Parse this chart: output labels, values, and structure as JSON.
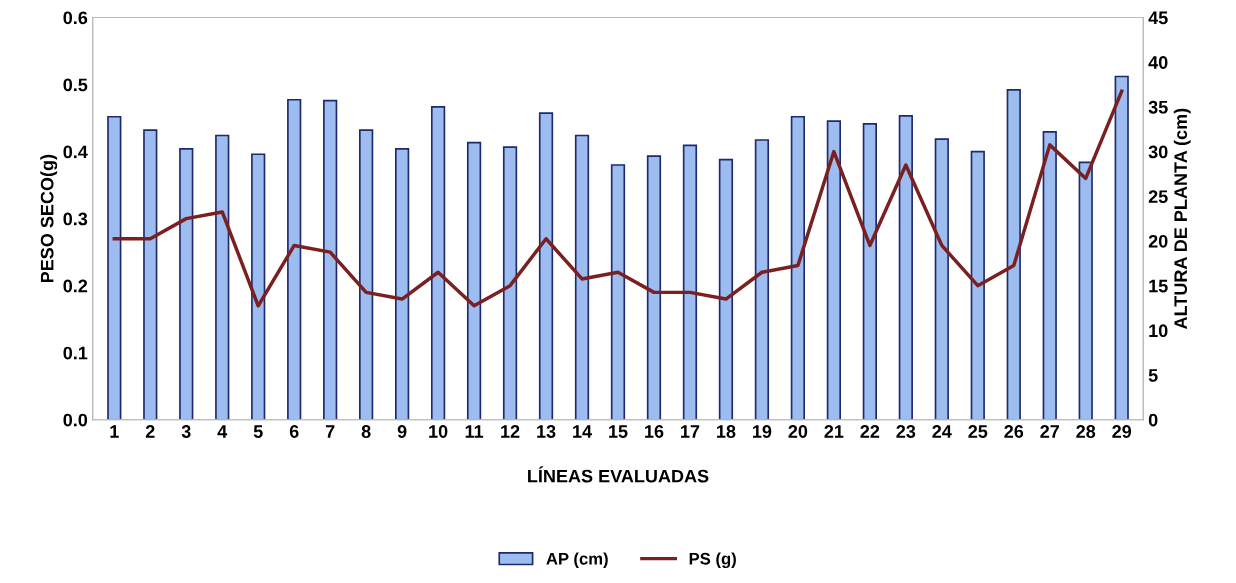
{
  "chart_data": {
    "type": "bar",
    "xlabel": "LÍNEAS EVALUADAS",
    "ylabel": "PESO SECO(g)",
    "y2label": "ALTURA DE PLANTA (cm)",
    "categories": [
      "1",
      "2",
      "3",
      "4",
      "5",
      "6",
      "7",
      "8",
      "9",
      "10",
      "11",
      "12",
      "13",
      "14",
      "15",
      "16",
      "17",
      "18",
      "19",
      "20",
      "21",
      "22",
      "23",
      "24",
      "25",
      "26",
      "27",
      "28",
      "29"
    ],
    "series": [
      {
        "name": "AP (cm)",
        "axis": "y2",
        "color": "#9dbdf0",
        "values": [
          33.9,
          32.4,
          30.3,
          31.8,
          29.7,
          35.8,
          35.7,
          32.4,
          30.3,
          35.0,
          31.0,
          30.5,
          34.3,
          31.8,
          28.5,
          29.5,
          30.7,
          29.1,
          31.3,
          33.9,
          33.4,
          33.1,
          34.0,
          31.4,
          30.0,
          36.9,
          32.2,
          28.8,
          38.4
        ]
      },
      {
        "name": "PS (g)",
        "type": "line",
        "axis": "y",
        "color": "#7b2020",
        "values": [
          0.27,
          0.27,
          0.3,
          0.31,
          0.17,
          0.26,
          0.25,
          0.19,
          0.18,
          0.22,
          0.17,
          0.2,
          0.27,
          0.21,
          0.22,
          0.19,
          0.19,
          0.18,
          0.22,
          0.23,
          0.4,
          0.26,
          0.38,
          0.26,
          0.2,
          0.23,
          0.41,
          0.36,
          0.49
        ]
      }
    ],
    "ylim": [
      0,
      0.6
    ],
    "yticks": [
      {
        "value": 0,
        "label": "0.0"
      },
      0.1,
      0.2,
      0.3,
      0.4,
      0.5,
      0.6
    ],
    "y2lim": [
      0,
      45
    ],
    "y2ticks": [
      0,
      5,
      10,
      15,
      20,
      25,
      30,
      35,
      40,
      45
    ],
    "legend": "bottom",
    "grid": false,
    "marker": "none",
    "line_style": "solid"
  }
}
